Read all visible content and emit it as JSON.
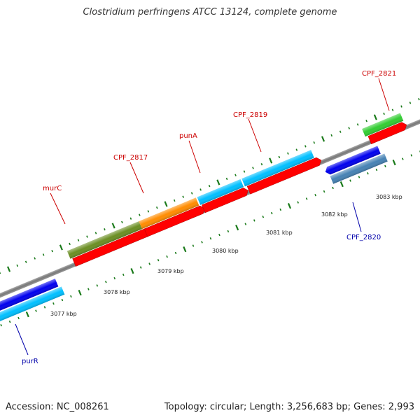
{
  "header": {
    "title": "Clostridium perfringens ATCC 13124, complete genome"
  },
  "footer": {
    "accession": "Accession: NC_008261",
    "topology": "Topology: circular; Length: 3,256,683 bp; Genes: 2,993"
  },
  "genes": {
    "forward": [
      {
        "id": "murC",
        "label": "murC",
        "feature_color": "#6b8e23"
      },
      {
        "id": "CPF_2817",
        "label": "CPF_2817",
        "feature_color": "#ff8c00"
      },
      {
        "id": "punA",
        "label": "punA",
        "feature_color": "#00bfff"
      },
      {
        "id": "CPF_2819",
        "label": "CPF_2819",
        "feature_color": "#00bfff"
      },
      {
        "id": "CPF_2821",
        "label": "CPF_2821",
        "feature_color": "#32cd32"
      }
    ],
    "reverse": [
      {
        "id": "purR",
        "label": "purR",
        "feature_color": "#00bfff"
      },
      {
        "id": "CPF_2820",
        "label": "CPF_2820",
        "feature_color": "#4682b4"
      }
    ]
  },
  "scale_labels": [
    "3077 kbp",
    "3078 kbp",
    "3079 kbp",
    "3080 kbp",
    "3081 kbp",
    "3082 kbp",
    "3083 kbp"
  ],
  "colors": {
    "cds": "#ff0000",
    "forward_label": "#cc0000",
    "reverse_label": "#0000aa",
    "backbone": "#888888",
    "tick": "#1a7a1a",
    "reverse_gene": "#0000ee"
  }
}
